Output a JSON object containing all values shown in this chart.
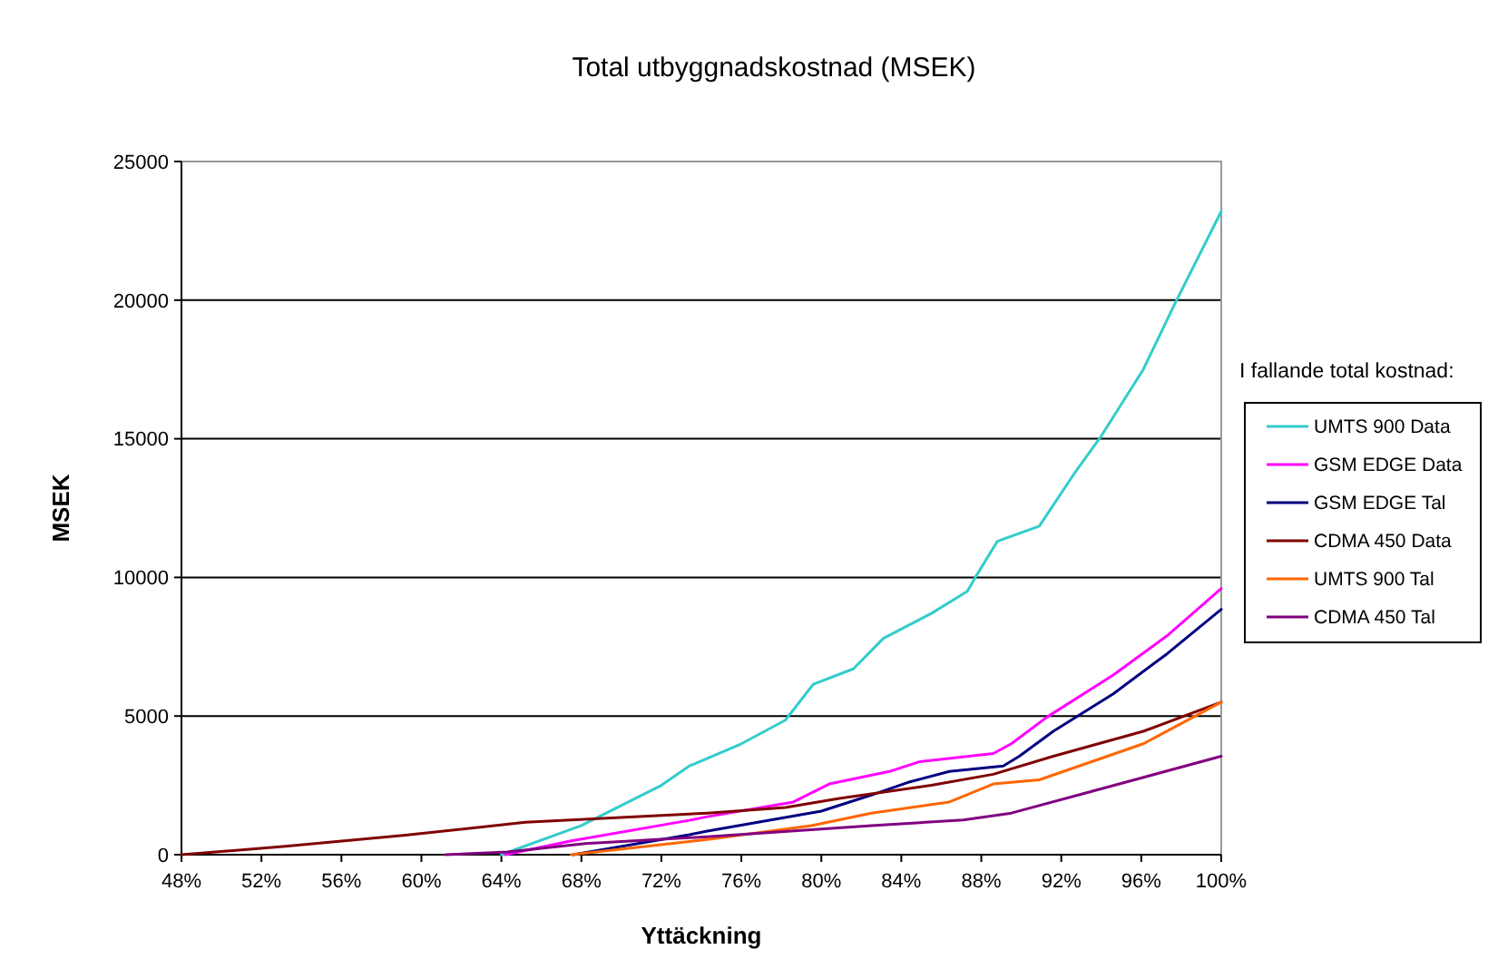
{
  "chart_data": {
    "type": "line",
    "title": "Total utbyggnadskostnad (MSEK)",
    "xlabel": "Yttäckning",
    "ylabel": "MSEK",
    "legend_title": "I fallande total kostnad:",
    "legend": "right",
    "grid": "y",
    "marker": "none",
    "line_style": "solid",
    "xlim": [
      48,
      100
    ],
    "xticks": [
      {
        "value": 48,
        "label": "48%"
      },
      {
        "value": 52,
        "label": "52%"
      },
      {
        "value": 56,
        "label": "56%"
      },
      {
        "value": 60,
        "label": "60%"
      },
      {
        "value": 64,
        "label": "64%"
      },
      {
        "value": 68,
        "label": "68%"
      },
      {
        "value": 72,
        "label": "72%"
      },
      {
        "value": 76,
        "label": "76%"
      },
      {
        "value": 80,
        "label": "80%"
      },
      {
        "value": 84,
        "label": "84%"
      },
      {
        "value": 88,
        "label": "88%"
      },
      {
        "value": 92,
        "label": "92%"
      },
      {
        "value": 96,
        "label": "96%"
      },
      {
        "value": 100,
        "label": "100%"
      }
    ],
    "ylim": [
      0,
      25000
    ],
    "yticks": [
      0,
      5000,
      10000,
      15000,
      20000,
      25000
    ],
    "series": [
      {
        "name": "UMTS 900 Data",
        "color": "#33cccc",
        "x": [
          64,
          68,
          72,
          73.4,
          76,
          78.2,
          79.6,
          81.6,
          83.1,
          85.5,
          87.3,
          87.7,
          88.8,
          90.9,
          92.7,
          94,
          96.1,
          97.7,
          100
        ],
        "values": [
          0,
          1050,
          2500,
          3200,
          4000,
          4850,
          6150,
          6700,
          7800,
          8700,
          9500,
          10000,
          11300,
          11850,
          13800,
          15100,
          17500,
          19900,
          23200
        ]
      },
      {
        "name": "GSM EDGE Data",
        "color": "#ff00ff",
        "x": [
          64.2,
          67.5,
          73.4,
          74.3,
          78.6,
          80.4,
          83.4,
          84.9,
          88.6,
          89.5,
          91.3,
          94.6,
          97.3,
          100
        ],
        "values": [
          0,
          500,
          1240,
          1370,
          1900,
          2550,
          3000,
          3350,
          3650,
          4000,
          4970,
          6480,
          7900,
          9600
        ]
      },
      {
        "name": "GSM EDGE Tal",
        "color": "#000080",
        "x": [
          67.6,
          73.4,
          74.3,
          80,
          82.5,
          84.3,
          86.4,
          89.1,
          89.9,
          91.6,
          94.6,
          97.3,
          100
        ],
        "values": [
          0,
          720,
          850,
          1570,
          2150,
          2600,
          3000,
          3200,
          3550,
          4450,
          5800,
          7250,
          8850
        ]
      },
      {
        "name": "CDMA 450 Data",
        "color": "#800000",
        "x": [
          48,
          53.2,
          59.2,
          65.2,
          74.3,
          78.2,
          80.9,
          85.5,
          88.6,
          91.6,
          96.1,
          100
        ],
        "values": [
          0,
          300,
          700,
          1170,
          1500,
          1700,
          2030,
          2500,
          2900,
          3550,
          4450,
          5500
        ]
      },
      {
        "name": "UMTS 900 Tal",
        "color": "#ff6600",
        "x": [
          67.5,
          74.3,
          79.5,
          82.5,
          86.4,
          88.6,
          90.9,
          92.7,
          96.1,
          100
        ],
        "values": [
          0,
          550,
          1050,
          1500,
          1900,
          2550,
          2700,
          3150,
          4000,
          5500
        ]
      },
      {
        "name": "CDMA 450 Tal",
        "color": "#800080",
        "x": [
          61.2,
          64.3,
          68.2,
          74.3,
          82.5,
          87.1,
          89.5,
          93.1,
          100
        ],
        "values": [
          0,
          100,
          400,
          650,
          1050,
          1250,
          1500,
          2200,
          3550
        ]
      }
    ]
  }
}
